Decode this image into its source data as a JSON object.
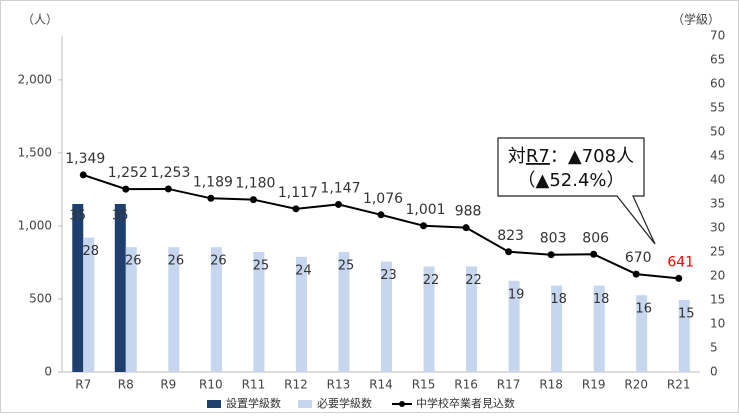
{
  "chart_data": {
    "type": "bar-line",
    "ylabel": "（人）",
    "y2label": "（学級）",
    "categories": [
      "R7",
      "R8",
      "R9",
      "R10",
      "R11",
      "R12",
      "R13",
      "R14",
      "R15",
      "R16",
      "R17",
      "R18",
      "R19",
      "R20",
      "R21"
    ],
    "ylim": [
      0,
      2300
    ],
    "yticks": [
      0,
      {
        "value": 500,
        "label": "500"
      },
      {
        "value": 1000,
        "label": "1,000"
      },
      {
        "value": 1500,
        "label": "1,500"
      },
      {
        "value": 2000,
        "label": "2,000"
      }
    ],
    "y2lim": [
      0,
      70
    ],
    "y2ticks": [
      0,
      5,
      10,
      15,
      20,
      25,
      30,
      35,
      40,
      45,
      50,
      55,
      60,
      65,
      70
    ],
    "series": [
      {
        "name": "設置学級数",
        "type": "bar",
        "axis": "y2",
        "color": "#1f3f6e",
        "values": [
          35,
          35,
          null,
          null,
          null,
          null,
          null,
          null,
          null,
          null,
          null,
          null,
          null,
          null,
          null
        ]
      },
      {
        "name": "必要学級数",
        "type": "bar",
        "axis": "y2",
        "color": "#c5d6ee",
        "values": [
          28,
          26,
          26,
          26,
          25,
          24,
          25,
          23,
          22,
          22,
          19,
          18,
          18,
          16,
          15
        ]
      },
      {
        "name": "中学校卒業者見込数",
        "type": "line",
        "color": "#000000",
        "values": [
          1349,
          1252,
          1253,
          1189,
          1180,
          1117,
          1147,
          1076,
          1001,
          988,
          823,
          803,
          806,
          670,
          641
        ],
        "value_labels": [
          "1,349",
          "1,252",
          "1,253",
          "1,189",
          "1,180",
          "1,117",
          "1,147",
          "1,076",
          "1,001",
          "988",
          "823",
          "803",
          "806",
          "670",
          "641"
        ],
        "value_label_colors": [
          "#333333",
          "#333333",
          "#333333",
          "#333333",
          "#333333",
          "#333333",
          "#333333",
          "#333333",
          "#333333",
          "#333333",
          "#333333",
          "#333333",
          "#333333",
          "#333333",
          "#ff0000"
        ]
      }
    ],
    "annotation": {
      "line1": [
        "対",
        "R7",
        "：▲708人"
      ],
      "line2": "（▲52.4%）"
    }
  }
}
